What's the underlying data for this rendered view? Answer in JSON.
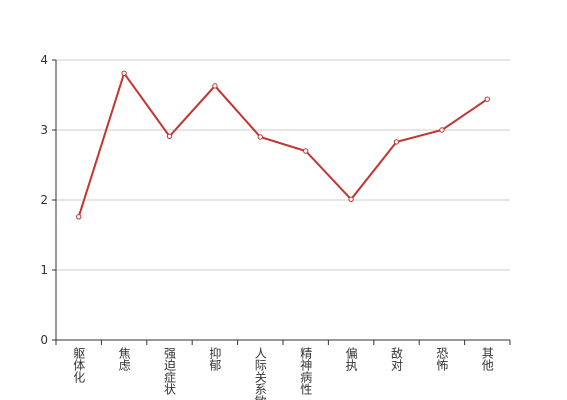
{
  "chart_data": {
    "type": "line",
    "categories": [
      "躯体化",
      "焦虑",
      "强迫症状",
      "抑郁",
      "人际关系敏感",
      "精神病性",
      "偏执",
      "敌对",
      "恐怖",
      "其他"
    ],
    "series": [
      {
        "color": "#c23531",
        "values": [
          1.76,
          3.81,
          2.91,
          3.63,
          2.9,
          2.7,
          2.01,
          2.83,
          3.0,
          3.44
        ]
      }
    ],
    "ylim": [
      0,
      4
    ],
    "yticks": [
      0,
      1,
      2,
      3,
      4
    ],
    "grid": true
  }
}
